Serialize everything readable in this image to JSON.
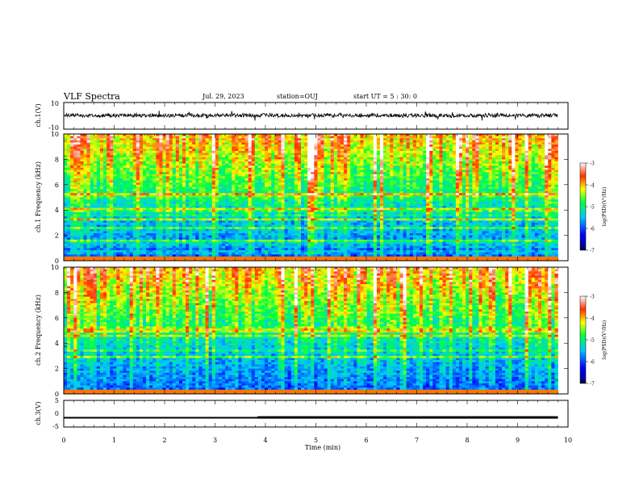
{
  "header": {
    "title": "VLF Spectra",
    "date": "Jul. 29, 2023",
    "station": "station=OUJ",
    "start": "start UT = 5 : 30: 0"
  },
  "chart_data": [
    {
      "type": "line",
      "panel": "ch1_waveform",
      "ylabel": "ch.1(V)",
      "ylim": [
        -10,
        10
      ],
      "y_ticks": [
        "10",
        "-10"
      ],
      "xlim": [
        0,
        10
      ],
      "series_color": "#000000"
    },
    {
      "type": "heatmap",
      "panel": "ch1_spectrogram",
      "ylabel": "ch.1 Frequency (kHz)",
      "ylim": [
        0,
        10
      ],
      "y_ticks": [
        "0",
        "2",
        "4",
        "6",
        "8",
        "10"
      ],
      "xlim": [
        0,
        9.8
      ],
      "colorbar": {
        "label": "log(PSD)(V²/Hz)",
        "range": [
          -7,
          -3
        ],
        "ticks": [
          "-3",
          "-4",
          "-5",
          "-6",
          "-7"
        ]
      }
    },
    {
      "type": "heatmap",
      "panel": "ch2_spectrogram",
      "ylabel": "ch.2 Frequency (kHz)",
      "ylim": [
        0,
        10
      ],
      "y_ticks": [
        "0",
        "2",
        "4",
        "6",
        "8",
        "10"
      ],
      "xlim": [
        0,
        9.8
      ],
      "colorbar": {
        "label": "log(PSD)(V²/Hz)",
        "range": [
          -7,
          -3
        ],
        "ticks": [
          "-3",
          "-4",
          "-5",
          "-6",
          "-7"
        ]
      }
    },
    {
      "type": "line",
      "panel": "ch3_signal",
      "ylabel": "ch.3(V)",
      "ylim": [
        -5,
        5
      ],
      "y_ticks": [
        "5",
        "0",
        "-5"
      ],
      "series": [
        {
          "x": [
            0,
            3.85,
            3.85,
            9.8
          ],
          "y": [
            -1.5,
            -1.5,
            -1.4,
            -1.4
          ]
        }
      ]
    }
  ],
  "x_axis": {
    "label": "Time (min)",
    "range": [
      0,
      10
    ],
    "ticks": [
      "0",
      "1",
      "2",
      "3",
      "4",
      "5",
      "6",
      "7",
      "8",
      "9",
      "10"
    ]
  }
}
